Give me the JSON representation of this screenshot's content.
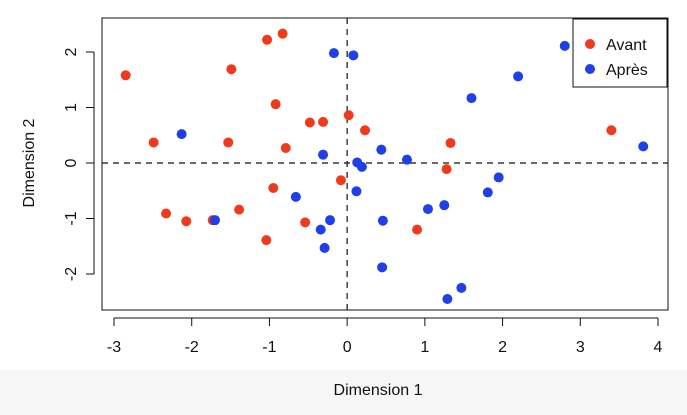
{
  "chart_data": {
    "type": "scatter",
    "title": "",
    "xlabel": "Dimension 1",
    "ylabel": "Dimension 2",
    "xlim": [
      -3,
      4
    ],
    "ylim": [
      -2.5,
      2.5
    ],
    "x_ticks": [
      -3,
      -2,
      -1,
      0,
      1,
      2,
      3,
      4
    ],
    "y_ticks": [
      -2,
      -1,
      0,
      1,
      2
    ],
    "x_tick_labels": [
      "-3",
      "-2",
      "-1",
      "0",
      "1",
      "2",
      "3",
      "4"
    ],
    "y_tick_labels": [
      "-2",
      "-1",
      "0",
      "1",
      "2"
    ],
    "reference_lines": {
      "x": 0,
      "y": 0,
      "style": "dashed"
    },
    "grid": false,
    "legend_position": "top-right",
    "series": [
      {
        "name": "Avant",
        "color": "#f03a1c",
        "points": [
          [
            -2.85,
            1.58
          ],
          [
            -1.03,
            2.22
          ],
          [
            -0.83,
            2.33
          ],
          [
            -1.49,
            1.69
          ],
          [
            -0.92,
            1.06
          ],
          [
            -0.48,
            0.73
          ],
          [
            -0.31,
            0.74
          ],
          [
            0.02,
            0.86
          ],
          [
            0.23,
            0.59
          ],
          [
            -2.49,
            0.37
          ],
          [
            -1.53,
            0.37
          ],
          [
            -0.79,
            0.27
          ],
          [
            1.33,
            0.36
          ],
          [
            3.4,
            0.59
          ],
          [
            1.28,
            -0.11
          ],
          [
            -0.08,
            -0.31
          ],
          [
            -0.95,
            -0.45
          ],
          [
            -2.33,
            -0.91
          ],
          [
            -2.07,
            -1.05
          ],
          [
            -1.73,
            -1.03
          ],
          [
            -1.39,
            -0.84
          ],
          [
            -0.54,
            -1.07
          ],
          [
            -1.04,
            -1.39
          ],
          [
            0.9,
            -1.2
          ]
        ]
      },
      {
        "name": "Après",
        "color": "#1f3fe8",
        "points": [
          [
            -0.17,
            1.98
          ],
          [
            0.08,
            1.94
          ],
          [
            2.8,
            2.11
          ],
          [
            2.2,
            1.56
          ],
          [
            1.6,
            1.17
          ],
          [
            -2.13,
            0.52
          ],
          [
            -0.31,
            0.15
          ],
          [
            0.44,
            0.24
          ],
          [
            0.77,
            0.06
          ],
          [
            0.13,
            0.01
          ],
          [
            0.19,
            -0.07
          ],
          [
            3.81,
            0.3
          ],
          [
            1.95,
            -0.26
          ],
          [
            1.81,
            -0.53
          ],
          [
            0.12,
            -0.51
          ],
          [
            -0.66,
            -0.61
          ],
          [
            -1.7,
            -1.03
          ],
          [
            -0.22,
            -1.03
          ],
          [
            -0.34,
            -1.2
          ],
          [
            0.46,
            -1.04
          ],
          [
            1.04,
            -0.83
          ],
          [
            1.25,
            -0.76
          ],
          [
            -0.29,
            -1.53
          ],
          [
            0.45,
            -1.88
          ],
          [
            1.47,
            -2.25
          ],
          [
            1.29,
            -2.45
          ]
        ]
      }
    ]
  }
}
